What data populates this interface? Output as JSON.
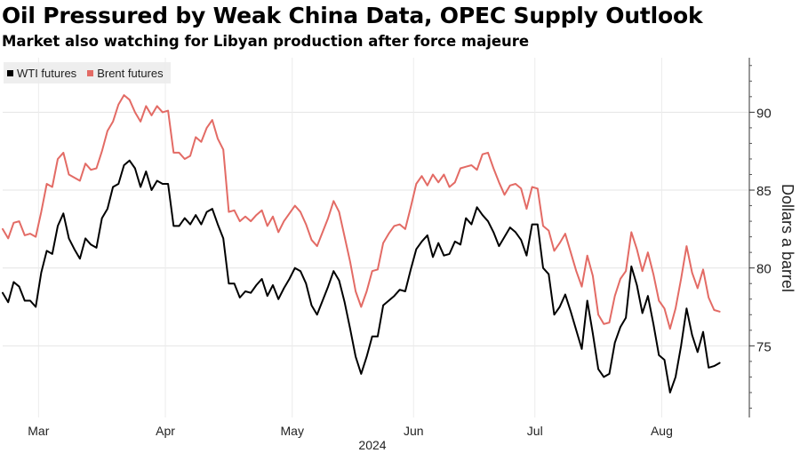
{
  "title": "Oil Pressured by Weak China Data, OPEC Supply Outlook",
  "subtitle": "Market also watching for Libyan production after force majeure",
  "chart_data": {
    "type": "line",
    "ylabel": "Dollars a barrel",
    "ylim": [
      70.4,
      93.5
    ],
    "yticks": [
      75,
      80,
      85,
      90
    ],
    "ytick_labels": [
      "75",
      "80",
      "85",
      "90"
    ],
    "xlim": [
      0,
      132
    ],
    "xticks": [
      {
        "label": "Mar",
        "pos": 6.5
      },
      {
        "label": "Apr",
        "pos": 29.5
      },
      {
        "label": "May",
        "pos": 52.5
      },
      {
        "label": "Jun",
        "pos": 74.5
      },
      {
        "label": "Jul",
        "pos": 96.5
      },
      {
        "label": "Aug",
        "pos": 119.5
      }
    ],
    "year_label": "2024",
    "grid": true,
    "legend_position": "top-left",
    "series": [
      {
        "name": "WTI futures",
        "color": "#000000",
        "values": [
          78.4,
          77.8,
          79.1,
          78.8,
          77.9,
          77.9,
          77.5,
          79.7,
          81.1,
          80.9,
          82.7,
          83.5,
          81.9,
          81.2,
          80.6,
          81.9,
          81.5,
          81.3,
          83.2,
          83.8,
          85.2,
          85.4,
          86.6,
          86.9,
          86.4,
          85.2,
          86.2,
          85.0,
          85.6,
          85.4,
          85.4,
          82.7,
          82.7,
          83.2,
          82.8,
          83.4,
          82.8,
          83.6,
          83.8,
          82.8,
          81.9,
          79.0,
          79.0,
          78.1,
          78.5,
          78.4,
          78.9,
          79.3,
          78.2,
          78.9,
          78.0,
          78.7,
          79.3,
          80.0,
          79.8,
          79.0,
          77.6,
          77.0,
          77.9,
          78.8,
          79.8,
          79.2,
          77.8,
          76.1,
          74.3,
          73.2,
          74.3,
          75.6,
          75.6,
          77.6,
          77.9,
          78.2,
          78.6,
          78.5,
          79.9,
          81.2,
          81.7,
          82.1,
          80.7,
          81.6,
          80.8,
          80.9,
          81.7,
          81.5,
          83.2,
          82.8,
          83.9,
          83.4,
          83.0,
          82.3,
          81.4,
          82.0,
          82.6,
          82.3,
          81.8,
          80.8,
          82.8,
          82.8,
          80.0,
          79.6,
          77.0,
          77.5,
          78.3,
          77.2,
          76.0,
          74.8,
          77.9,
          75.8,
          73.5,
          73.0,
          73.2,
          75.2,
          76.2,
          76.8,
          80.1,
          78.9,
          77.1,
          78.2,
          76.4,
          74.4,
          74.1,
          72.0,
          73.0,
          75.0,
          77.4,
          75.7,
          74.6,
          75.9,
          73.6,
          73.7,
          73.9
        ]
      },
      {
        "name": "Brent futures",
        "color": "#e36b65",
        "values": [
          82.5,
          81.9,
          82.9,
          83.0,
          82.1,
          82.2,
          82.0,
          83.6,
          85.4,
          85.2,
          87.0,
          87.4,
          86.0,
          85.8,
          85.6,
          86.7,
          86.3,
          86.4,
          87.5,
          88.8,
          89.4,
          90.5,
          91.1,
          90.8,
          90.0,
          89.4,
          90.4,
          89.8,
          90.4,
          90.0,
          90.1,
          87.4,
          87.4,
          87.0,
          87.2,
          88.4,
          88.1,
          89.0,
          89.5,
          88.3,
          87.6,
          83.6,
          83.7,
          83.0,
          83.3,
          83.0,
          83.4,
          83.7,
          82.7,
          83.3,
          82.3,
          83.0,
          83.5,
          84.0,
          83.6,
          82.8,
          81.8,
          81.4,
          82.3,
          83.2,
          84.3,
          83.6,
          82.0,
          80.4,
          78.5,
          77.5,
          78.5,
          79.8,
          79.9,
          81.6,
          82.2,
          82.7,
          82.8,
          82.5,
          83.9,
          85.4,
          85.9,
          85.3,
          86.0,
          85.5,
          86.0,
          85.2,
          85.5,
          86.4,
          86.5,
          86.6,
          86.3,
          87.3,
          87.4,
          86.4,
          85.5,
          84.7,
          85.3,
          85.4,
          85.1,
          83.8,
          85.2,
          85.1,
          82.7,
          82.4,
          81.1,
          81.6,
          82.2,
          81.0,
          79.8,
          78.8,
          80.8,
          79.5,
          77.0,
          76.4,
          76.5,
          78.2,
          79.3,
          79.8,
          82.3,
          81.2,
          79.8,
          81.0,
          79.6,
          77.9,
          77.4,
          76.1,
          77.4,
          79.3,
          81.4,
          79.7,
          78.7,
          79.9,
          78.1,
          77.3,
          77.2
        ]
      }
    ]
  }
}
